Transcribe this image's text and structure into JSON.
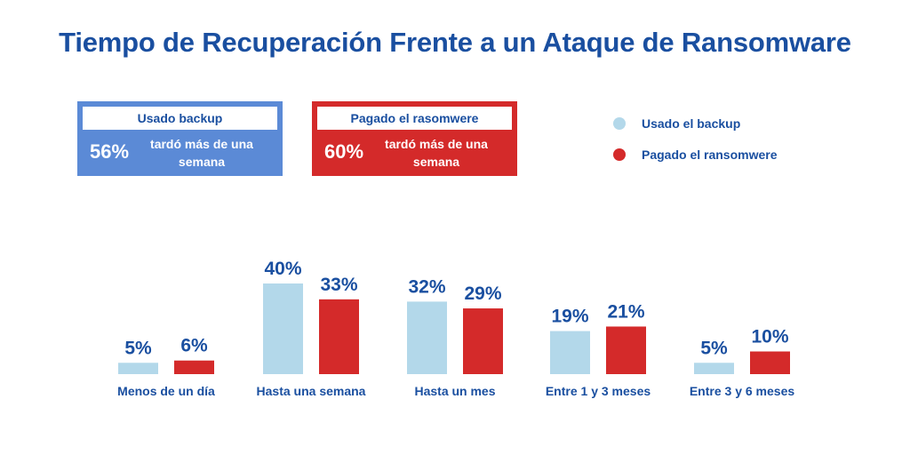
{
  "colors": {
    "title": "#1a4fa0",
    "backup": "#b3d8ea",
    "ransom": "#d42a2a",
    "card_blue": "#5b8ad6",
    "card_red": "#d42a2a"
  },
  "title": "Tiempo de Recuperación Frente a un Ataque de Ransomware",
  "cards": [
    {
      "heading": "Usado backup",
      "pct": "56%",
      "text": "tardó más de una semana"
    },
    {
      "heading": "Pagado el rasomwere",
      "pct": "60%",
      "text": "tardó más de una semana"
    }
  ],
  "legend": [
    {
      "label": "Usado el backup"
    },
    {
      "label": "Pagado el ransomwere"
    }
  ],
  "chart_data": {
    "type": "bar",
    "title": "Tiempo de Recuperación Frente a un Ataque de Ransomware",
    "categories": [
      "Menos de un día",
      "Hasta una semana",
      "Hasta un mes",
      "Entre 1 y 3 meses",
      "Entre 3 y 6 meses"
    ],
    "series": [
      {
        "name": "Usado el backup",
        "values": [
          5,
          40,
          32,
          19,
          5
        ],
        "color": "#b3d8ea"
      },
      {
        "name": "Pagado el ransomwere",
        "values": [
          6,
          33,
          29,
          21,
          10
        ],
        "color": "#d42a2a"
      }
    ],
    "value_suffix": "%",
    "ylim": [
      0,
      40
    ],
    "grid": false,
    "legend_position": "top-right"
  }
}
